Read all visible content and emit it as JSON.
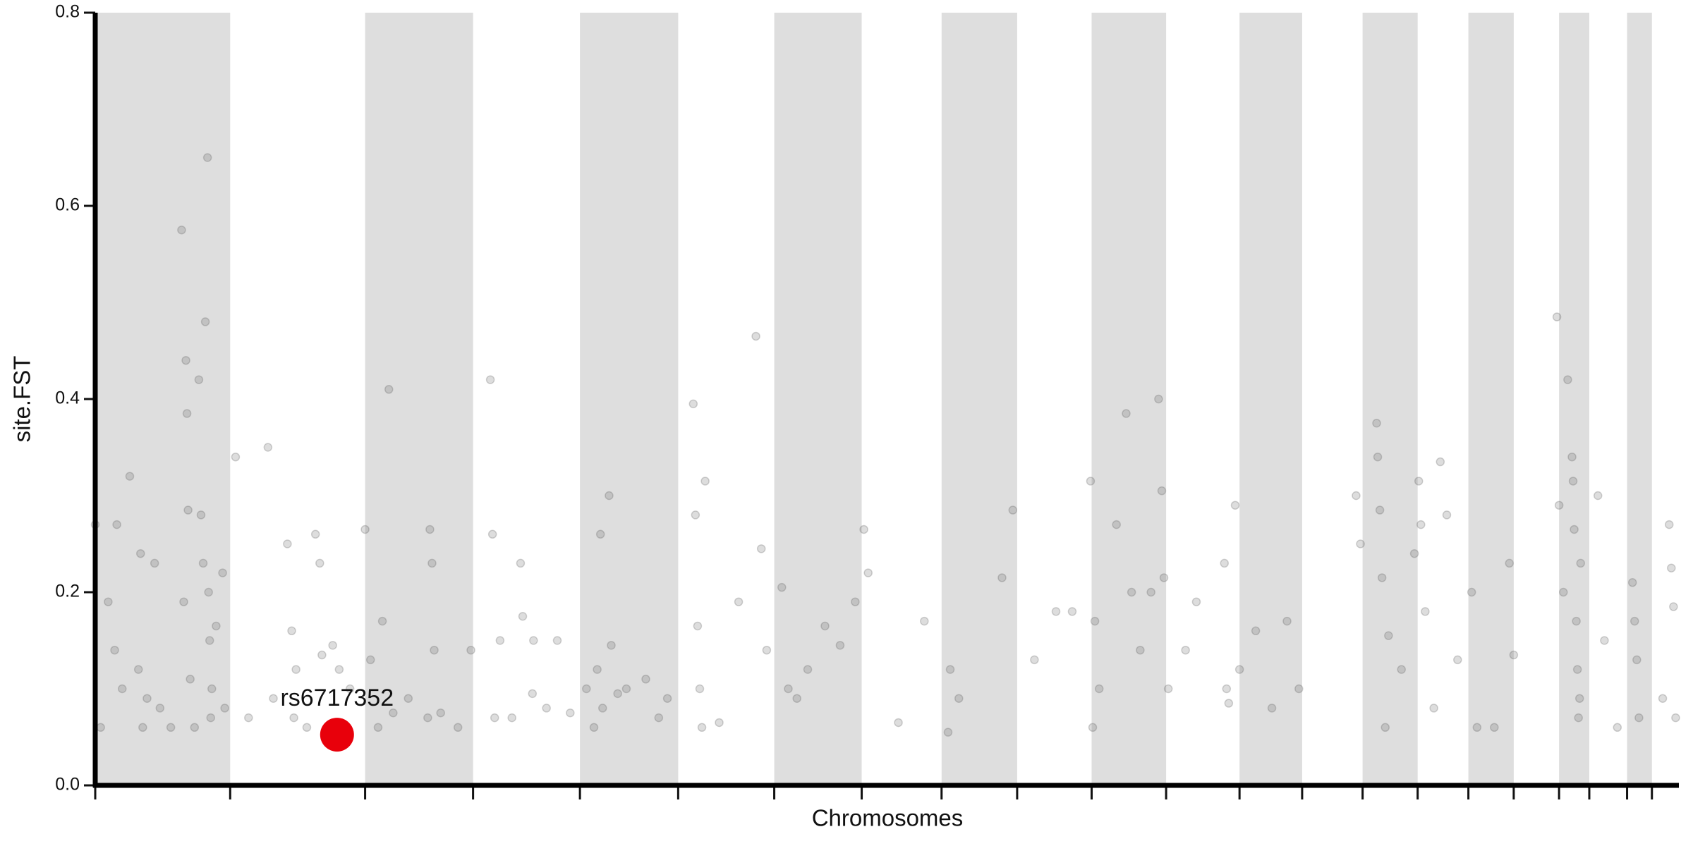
{
  "chart_data": {
    "type": "scatter",
    "xlabel": "Chromosomes",
    "ylabel": "site.FST",
    "xlim": [
      0,
      1467
    ],
    "ylim": [
      0,
      0.8
    ],
    "yticks": [
      {
        "value": 0,
        "label": "0.0"
      },
      0.2,
      0.4,
      0.6,
      0.8
    ],
    "chromosome_bounds": [
      0,
      125,
      250,
      350,
      449,
      540,
      629,
      710,
      784,
      854,
      923,
      992,
      1060,
      1118,
      1174,
      1225,
      1272,
      1314,
      1356,
      1384,
      1419,
      1442,
      1467
    ],
    "band_color": "#dedede",
    "series": [
      {
        "color": "#555555",
        "x": [
          0,
          5,
          12,
          18,
          20,
          25,
          32,
          40,
          42,
          44,
          48,
          55,
          60,
          70,
          80,
          82,
          84,
          85,
          86,
          88,
          92,
          96,
          98,
          100,
          102,
          104,
          105,
          106,
          107,
          108,
          112,
          118,
          120,
          130,
          142,
          160,
          165,
          178,
          182,
          184,
          186,
          196,
          204,
          208,
          210,
          220,
          226,
          236,
          250,
          255,
          262,
          266,
          272,
          276,
          290,
          308,
          310,
          312,
          314,
          320,
          336,
          348,
          366,
          368,
          370,
          375,
          386,
          394,
          396,
          405,
          406,
          418,
          428,
          440,
          455,
          462,
          465,
          468,
          470,
          476,
          478,
          484,
          492,
          510,
          522,
          530,
          554,
          556,
          558,
          560,
          562,
          565,
          578,
          596,
          612,
          617,
          622,
          636,
          642,
          650,
          660,
          676,
          690,
          704,
          712,
          716,
          744,
          768,
          790,
          792,
          800,
          840,
          850,
          870,
          890,
          905,
          922,
          924,
          926,
          930,
          946,
          955,
          960,
          968,
          978,
          985,
          988,
          990,
          994,
          1010,
          1020,
          1046,
          1048,
          1050,
          1056,
          1060,
          1075,
          1090,
          1104,
          1115,
          1168,
          1172,
          1187,
          1188,
          1190,
          1192,
          1195,
          1198,
          1210,
          1222,
          1226,
          1228,
          1232,
          1240,
          1246,
          1252,
          1262,
          1275,
          1280,
          1296,
          1310,
          1314,
          1354,
          1356,
          1360,
          1364,
          1368,
          1369,
          1370,
          1372,
          1373,
          1374,
          1375,
          1376,
          1392,
          1398,
          1410,
          1424,
          1426,
          1428,
          1430,
          1452,
          1458,
          1460,
          1462,
          1464
        ],
        "values": [
          0.27,
          0.06,
          0.19,
          0.14,
          0.27,
          0.1,
          0.32,
          0.12,
          0.24,
          0.06,
          0.09,
          0.23,
          0.08,
          0.06,
          0.575,
          0.19,
          0.44,
          0.385,
          0.285,
          0.11,
          0.06,
          0.42,
          0.28,
          0.23,
          0.48,
          0.65,
          0.2,
          0.15,
          0.07,
          0.1,
          0.165,
          0.22,
          0.08,
          0.34,
          0.07,
          0.35,
          0.09,
          0.25,
          0.16,
          0.07,
          0.12,
          0.06,
          0.26,
          0.23,
          0.135,
          0.145,
          0.12,
          0.1,
          0.265,
          0.13,
          0.06,
          0.17,
          0.41,
          0.075,
          0.09,
          0.07,
          0.265,
          0.23,
          0.14,
          0.075,
          0.06,
          0.14,
          0.42,
          0.26,
          0.07,
          0.15,
          0.07,
          0.23,
          0.175,
          0.095,
          0.15,
          0.08,
          0.15,
          0.075,
          0.1,
          0.06,
          0.12,
          0.26,
          0.08,
          0.3,
          0.145,
          0.095,
          0.1,
          0.11,
          0.07,
          0.09,
          0.395,
          0.28,
          0.165,
          0.1,
          0.06,
          0.315,
          0.065,
          0.19,
          0.465,
          0.245,
          0.14,
          0.205,
          0.1,
          0.09,
          0.12,
          0.165,
          0.145,
          0.19,
          0.265,
          0.22,
          0.065,
          0.17,
          0.055,
          0.12,
          0.09,
          0.215,
          0.285,
          0.13,
          0.18,
          0.18,
          0.315,
          0.06,
          0.17,
          0.1,
          0.27,
          0.385,
          0.2,
          0.14,
          0.2,
          0.4,
          0.305,
          0.215,
          0.1,
          0.14,
          0.19,
          0.23,
          0.1,
          0.085,
          0.29,
          0.12,
          0.16,
          0.08,
          0.17,
          0.1,
          0.3,
          0.25,
          0.375,
          0.34,
          0.285,
          0.215,
          0.06,
          0.155,
          0.12,
          0.24,
          0.315,
          0.27,
          0.18,
          0.08,
          0.335,
          0.28,
          0.13,
          0.2,
          0.06,
          0.06,
          0.23,
          0.135,
          0.485,
          0.29,
          0.2,
          0.42,
          0.34,
          0.315,
          0.265,
          0.17,
          0.12,
          0.07,
          0.09,
          0.23,
          0.3,
          0.15,
          0.06,
          0.21,
          0.17,
          0.13,
          0.07,
          0.09,
          0.27,
          0.225,
          0.185,
          0.07
        ]
      }
    ],
    "highlight": {
      "label": "rs6717352",
      "x": 224,
      "value": 0.0525,
      "color": "#e8000b"
    }
  }
}
